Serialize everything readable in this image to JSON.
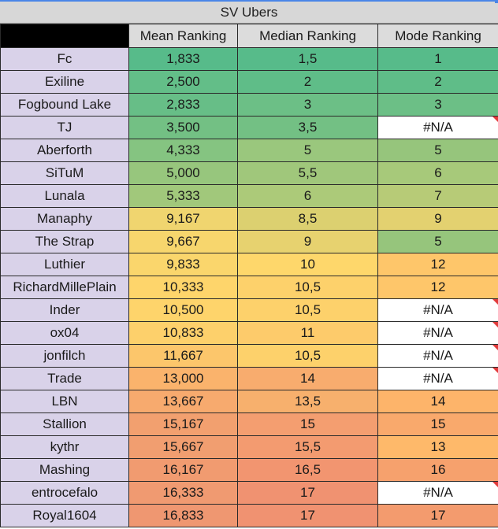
{
  "sheet": {
    "title": "SV Ubers",
    "headers": [
      "",
      "Mean Ranking",
      "Median Ranking",
      "Mode Ranking"
    ],
    "rows": [
      {
        "name": "Fc",
        "mean": "1,833",
        "median": "1,5",
        "mode": "1",
        "colors": [
          "#57bb8a",
          "#57bb8a",
          "#57bb8a"
        ],
        "note": false
      },
      {
        "name": "Exiline",
        "mean": "2,500",
        "median": "2",
        "mode": "2",
        "colors": [
          "#63be88",
          "#5fbd88",
          "#5fbd88"
        ],
        "note": false
      },
      {
        "name": "Fogbound Lake",
        "mean": "2,833",
        "median": "3",
        "mode": "3",
        "colors": [
          "#67be87",
          "#6cbf86",
          "#6cbf86"
        ],
        "note": false
      },
      {
        "name": "TJ",
        "mean": "3,500",
        "median": "3,5",
        "mode": "#N/A",
        "colors": [
          "#73c084",
          "#73c084",
          "#ffffff"
        ],
        "note": true
      },
      {
        "name": "Aberforth",
        "mean": "4,333",
        "median": "5",
        "mode": "5",
        "colors": [
          "#85c481",
          "#9ac77d",
          "#96c57c"
        ],
        "note": false
      },
      {
        "name": "SiTuM",
        "mean": "5,000",
        "median": "5,5",
        "mode": "6",
        "colors": [
          "#97c67d",
          "#a0c77b",
          "#a7c97a"
        ],
        "note": false
      },
      {
        "name": "Lunala",
        "mean": "5,333",
        "median": "6",
        "mode": "7",
        "colors": [
          "#a1c87b",
          "#acca79",
          "#b7cb77"
        ],
        "note": false
      },
      {
        "name": "Manaphy",
        "mean": "9,167",
        "median": "8,5",
        "mode": "9",
        "colors": [
          "#f0d56f",
          "#dcd070",
          "#e3d170"
        ],
        "note": false
      },
      {
        "name": "The Strap",
        "mean": "9,667",
        "median": "9",
        "mode": "5",
        "colors": [
          "#f7d66d",
          "#e7d26f",
          "#96c57c"
        ],
        "note": false
      },
      {
        "name": "Luthier",
        "mean": "9,833",
        "median": "10",
        "mode": "12",
        "colors": [
          "#fad66c",
          "#fed76b",
          "#fec66a"
        ],
        "note": false
      },
      {
        "name": "RichardMillePlain",
        "mean": "10,333",
        "median": "10,5",
        "mode": "12",
        "colors": [
          "#fed56b",
          "#fdd16b",
          "#fec66a"
        ],
        "note": false
      },
      {
        "name": "Inder",
        "mean": "10,500",
        "median": "10,5",
        "mode": "#N/A",
        "colors": [
          "#fed46b",
          "#fdd16b",
          "#ffffff"
        ],
        "note": true
      },
      {
        "name": "ox04",
        "mean": "10,833",
        "median": "11",
        "mode": "#N/A",
        "colors": [
          "#fdd06b",
          "#fdcb6b",
          "#ffffff"
        ],
        "note": true
      },
      {
        "name": "jonfilch",
        "mean": "11,667",
        "median": "10,5",
        "mode": "#N/A",
        "colors": [
          "#fcc66b",
          "#fdd16b",
          "#ffffff"
        ],
        "note": true
      },
      {
        "name": "Trade",
        "mean": "13,000",
        "median": "14",
        "mode": "#N/A",
        "colors": [
          "#fab36c",
          "#f8ac6e",
          "#ffffff"
        ],
        "note": true
      },
      {
        "name": "LBN",
        "mean": "13,667",
        "median": "13,5",
        "mode": "14",
        "colors": [
          "#f7aa6e",
          "#f7b06d",
          "#fdb46a"
        ],
        "note": false
      },
      {
        "name": "Stallion",
        "mean": "15,167",
        "median": "15",
        "mode": "15",
        "colors": [
          "#f2a06f",
          "#f49e70",
          "#f9a96c"
        ],
        "note": false
      },
      {
        "name": "kythr",
        "mean": "15,667",
        "median": "15,5",
        "mode": "13",
        "colors": [
          "#f19e70",
          "#f39b70",
          "#feb96a"
        ],
        "note": false
      },
      {
        "name": "Mashing",
        "mean": "16,167",
        "median": "16,5",
        "mode": "16",
        "colors": [
          "#f19b70",
          "#f29570",
          "#f6a16d"
        ],
        "note": false
      },
      {
        "name": "entrocefalo",
        "mean": "16,333",
        "median": "17",
        "mode": "#N/A",
        "colors": [
          "#f09a71",
          "#f09271",
          "#ffffff"
        ],
        "note": true
      },
      {
        "name": "Royal1604",
        "mean": "16,833",
        "median": "17",
        "mode": "17",
        "colors": [
          "#ef9771",
          "#f09271",
          "#f39b6e"
        ],
        "note": false
      }
    ]
  }
}
